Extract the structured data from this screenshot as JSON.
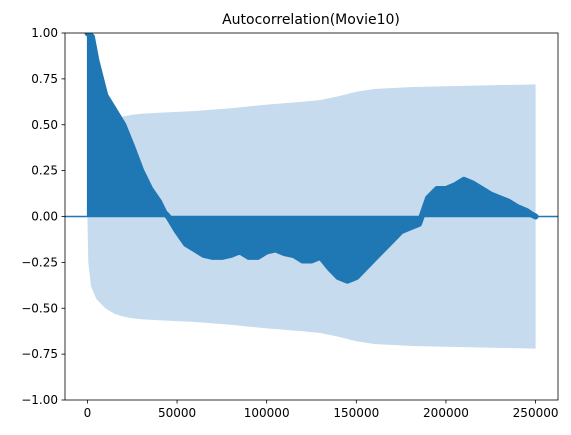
{
  "chart_data": {
    "type": "area",
    "title": "Autocorrelation(Movie10)",
    "xlabel": "",
    "ylabel": "",
    "xlim": [
      -12500,
      262500
    ],
    "ylim": [
      -1.0,
      1.0
    ],
    "x_ticks": [
      0,
      50000,
      100000,
      150000,
      200000,
      250000
    ],
    "x_tick_labels": [
      "0",
      "50000",
      "100000",
      "150000",
      "200000",
      "250000"
    ],
    "y_ticks": [
      -1.0,
      -0.75,
      -0.5,
      -0.25,
      0.0,
      0.25,
      0.5,
      0.75,
      1.0
    ],
    "y_tick_labels": [
      "−1.00",
      "−0.75",
      "−0.50",
      "−0.25",
      "0.00",
      "0.25",
      "0.50",
      "0.75",
      "1.00"
    ],
    "grid": false,
    "legend": "none",
    "colors": {
      "acf": "#1f77b4",
      "confidence_band": "#c6dbee",
      "zero_line": "#1f77b4"
    },
    "series": [
      {
        "kind": "autocorrelation",
        "x": [
          0,
          2500,
          5000,
          10000,
          15000,
          20000,
          25000,
          30000,
          35000,
          40000,
          43000,
          45000,
          50000,
          55000,
          60000,
          65000,
          70000,
          75000,
          80000,
          85000,
          90000,
          95000,
          100000,
          105000,
          110000,
          115000,
          120000,
          125000,
          130000,
          135000,
          140000,
          145000,
          150000,
          155000,
          160000,
          165000,
          170000,
          175000,
          180000,
          185000,
          190000,
          195000,
          200000,
          205000,
          210000,
          215000,
          220000,
          225000,
          230000,
          235000,
          240000,
          245000,
          248000,
          250000
        ],
        "y": [
          1.0,
          0.98,
          0.85,
          0.66,
          0.58,
          0.5,
          0.38,
          0.25,
          0.15,
          0.08,
          0.02,
          0.0,
          -0.08,
          -0.15,
          -0.18,
          -0.21,
          -0.22,
          -0.22,
          -0.21,
          -0.19,
          -0.22,
          -0.22,
          -0.19,
          -0.18,
          -0.2,
          -0.21,
          -0.24,
          -0.24,
          -0.22,
          -0.28,
          -0.33,
          -0.35,
          -0.33,
          -0.28,
          -0.23,
          -0.18,
          -0.13,
          -0.08,
          -0.06,
          -0.04,
          0.1,
          0.15,
          0.15,
          0.17,
          0.2,
          0.18,
          0.15,
          0.12,
          0.1,
          0.08,
          0.05,
          0.03,
          0.01,
          0.0
        ]
      }
    ],
    "confidence_band": {
      "x": [
        0,
        500,
        2000,
        5000,
        10000,
        15000,
        20000,
        25000,
        30000,
        40000,
        50000,
        60000,
        80000,
        100000,
        120000,
        130000,
        140000,
        150000,
        160000,
        180000,
        200000,
        250000
      ],
      "upper": [
        0.0,
        0.25,
        0.38,
        0.45,
        0.5,
        0.53,
        0.545,
        0.555,
        0.56,
        0.565,
        0.57,
        0.575,
        0.59,
        0.61,
        0.625,
        0.635,
        0.655,
        0.68,
        0.695,
        0.705,
        0.71,
        0.72
      ],
      "lower": [
        0.0,
        -0.25,
        -0.38,
        -0.45,
        -0.5,
        -0.53,
        -0.545,
        -0.555,
        -0.56,
        -0.565,
        -0.57,
        -0.575,
        -0.59,
        -0.61,
        -0.625,
        -0.635,
        -0.655,
        -0.68,
        -0.695,
        -0.705,
        -0.71,
        -0.72
      ]
    }
  }
}
